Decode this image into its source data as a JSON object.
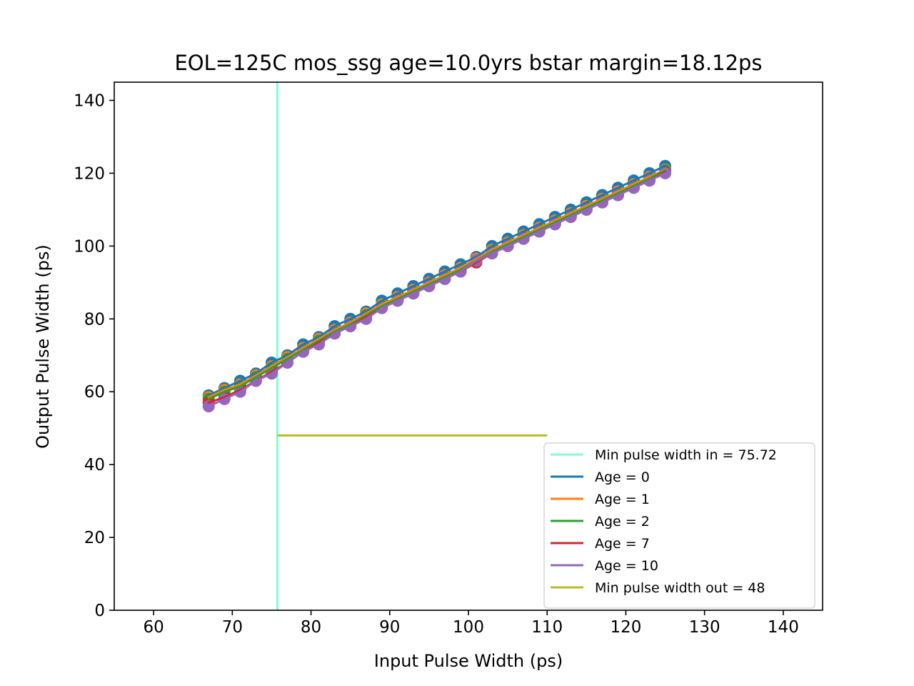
{
  "chart_data": {
    "type": "line",
    "title": "EOL=125C  mos_ssg age=10.0yrs bstar margin=18.12ps",
    "xlabel": "Input Pulse Width (ps)",
    "ylabel": "Output Pulse Width (ps)",
    "xlim": [
      55,
      145
    ],
    "ylim": [
      0,
      145
    ],
    "x_ticks": [
      "60",
      "70",
      "80",
      "90",
      "100",
      "110",
      "120",
      "130",
      "140"
    ],
    "y_ticks": [
      "0",
      "20",
      "40",
      "60",
      "80",
      "100",
      "120",
      "140"
    ],
    "grid": false,
    "legend_position": "lower-right",
    "x": [
      67,
      69,
      71,
      73,
      75,
      77,
      79,
      81,
      83,
      85,
      87,
      89,
      91,
      93,
      95,
      97,
      99,
      101,
      103,
      105,
      107,
      109,
      111,
      113,
      115,
      117,
      119,
      121,
      123,
      125
    ],
    "series": [
      {
        "name": "Age = 0",
        "color": "#1f77b4",
        "values": [
          59,
          61,
          63,
          65,
          68,
          70,
          73,
          75,
          78,
          80,
          82,
          85,
          87,
          89,
          91,
          93,
          95,
          97,
          100,
          102,
          104,
          106,
          108,
          110,
          112,
          114,
          116,
          118,
          120,
          122
        ]
      },
      {
        "name": "Age = 1",
        "color": "#ff7f0e",
        "values": [
          58.5,
          60.5,
          62,
          64.5,
          67,
          69.5,
          72,
          74.5,
          77,
          79,
          81.5,
          84,
          86,
          88,
          90,
          92,
          94,
          96.5,
          99,
          101,
          103,
          105,
          107,
          109,
          111,
          113,
          115,
          117,
          119,
          121
        ]
      },
      {
        "name": "Age = 2",
        "color": "#2ca02c",
        "values": [
          58,
          60,
          61.5,
          64,
          66.5,
          69,
          71.5,
          74,
          76.5,
          78.5,
          81,
          83.5,
          85.5,
          87.5,
          89.5,
          91.5,
          93.5,
          96,
          98.5,
          100.5,
          102.5,
          104.5,
          106.5,
          108.5,
          110.5,
          112.5,
          114.5,
          116.5,
          118.5,
          120.8
        ]
      },
      {
        "name": "Age = 7",
        "color": "#d62728",
        "values": [
          57,
          58.5,
          60.5,
          63,
          65.5,
          68,
          71,
          73.5,
          76,
          78,
          80.5,
          83,
          85,
          87,
          89,
          91,
          93,
          95.5,
          98,
          100,
          102,
          104,
          106,
          108,
          110,
          112,
          114,
          116,
          118,
          120.3
        ]
      },
      {
        "name": "Age = 10",
        "color": "#9467bd",
        "values": [
          56,
          58,
          60,
          63,
          65,
          68,
          71,
          73,
          76,
          78,
          80,
          83,
          85,
          87,
          89,
          91,
          93,
          96,
          98,
          100,
          102,
          104,
          106,
          108,
          110,
          112,
          114,
          116,
          118,
          120
        ]
      }
    ],
    "markers": [
      {
        "name": "Min pulse width in = 75.72",
        "orientation": "vertical",
        "x": 75.72,
        "color": "#7fffd4"
      },
      {
        "name": "Min pulse width out = 48",
        "orientation": "horizontal",
        "y": 48,
        "x_from": 75.72,
        "x_to": 110,
        "color": "#bcbd22"
      }
    ]
  }
}
